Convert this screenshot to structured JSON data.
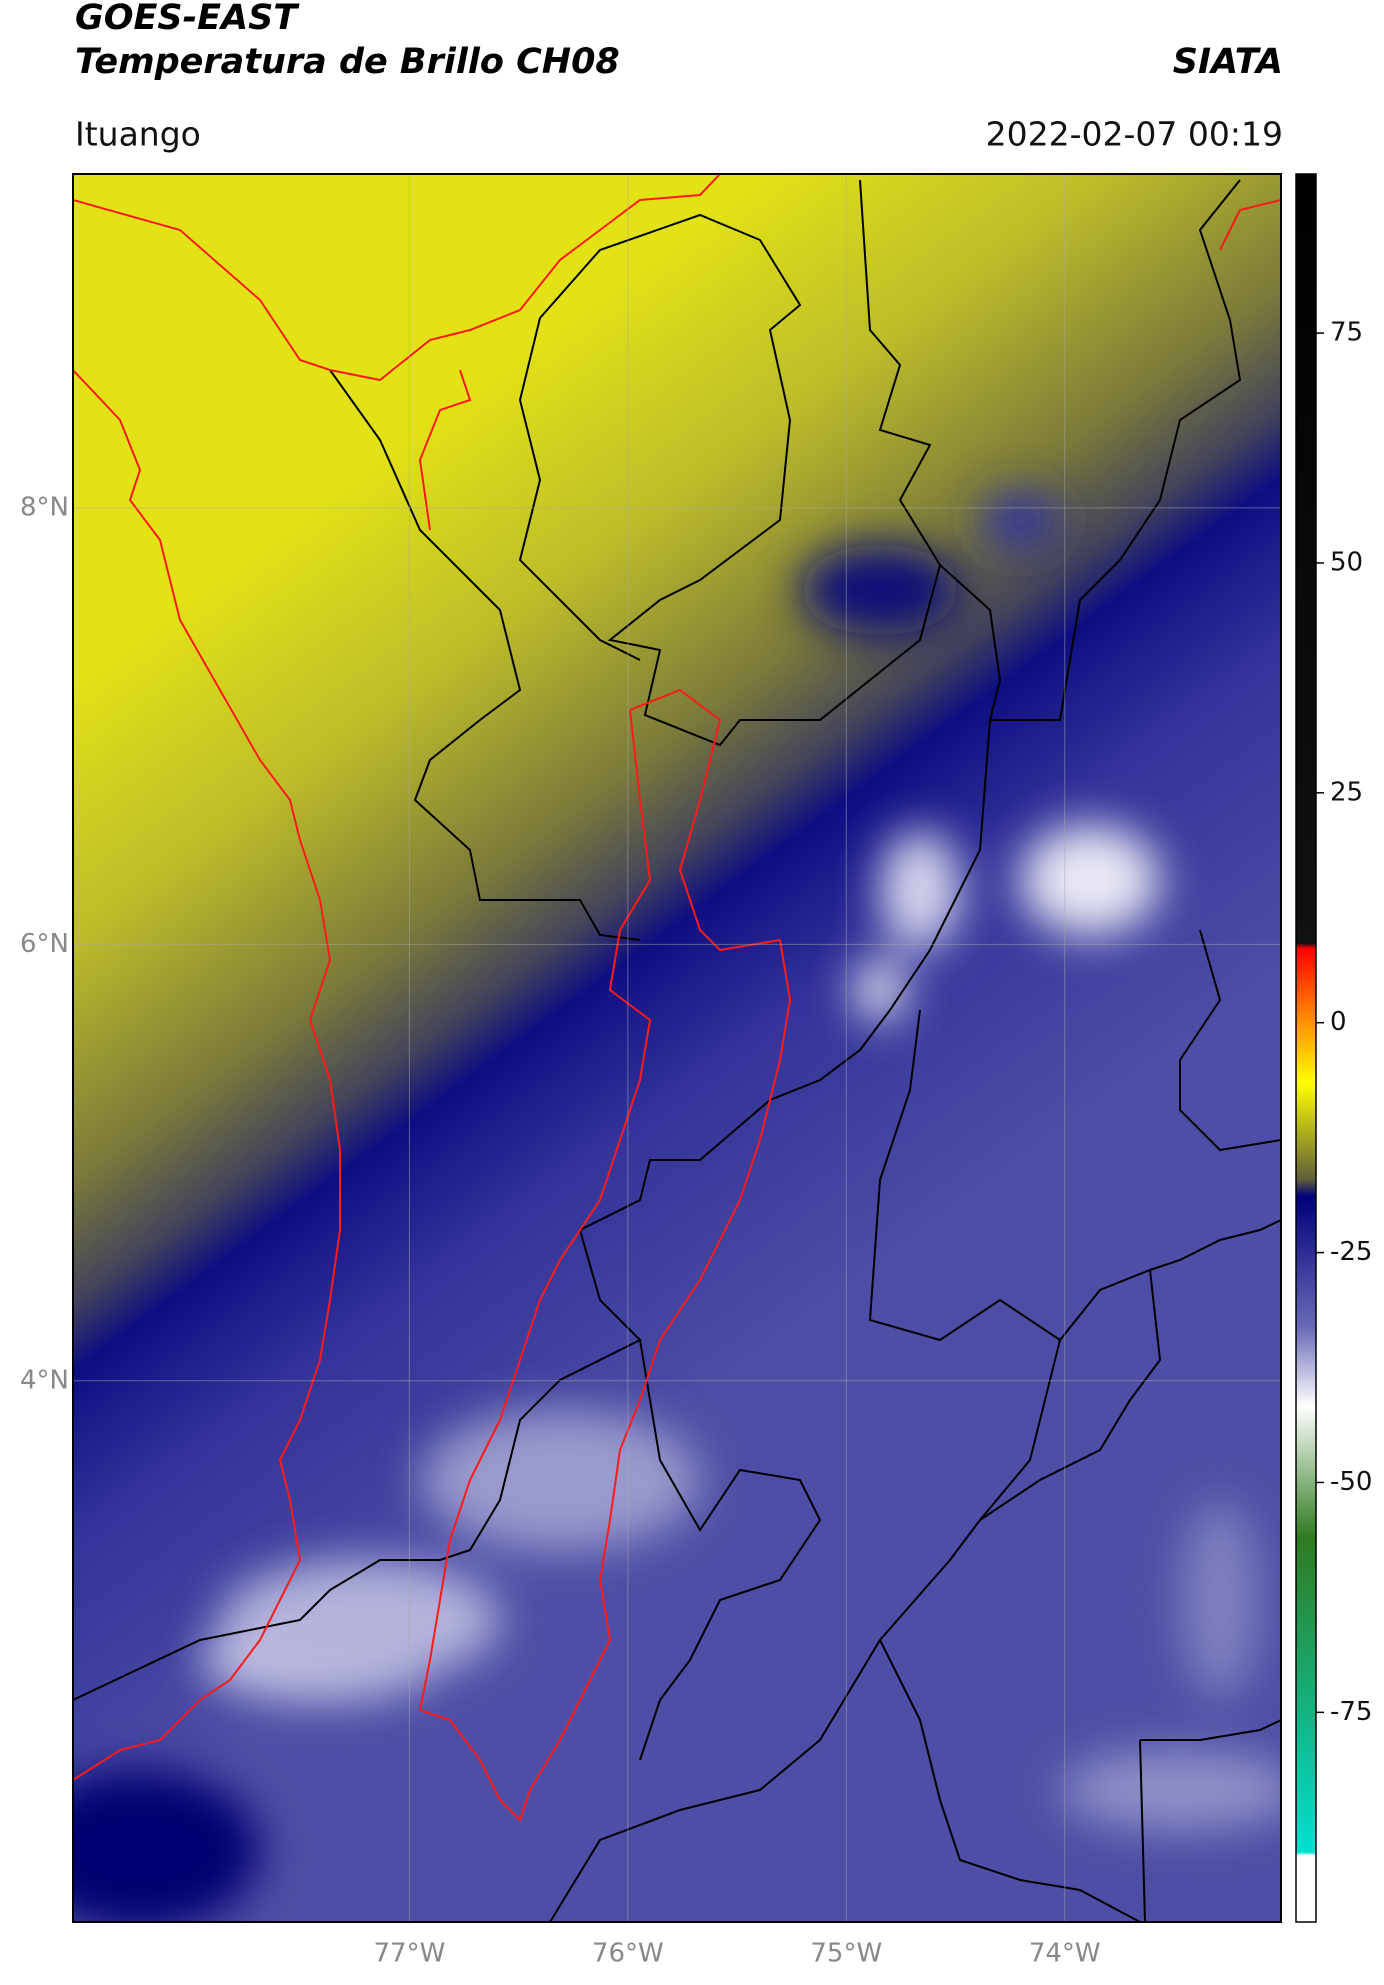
{
  "header": {
    "title": "GOES-EAST",
    "subtitle": "Temperatura de Brillo CH08",
    "source": "SIATA",
    "location": "Ituango",
    "datetime": "2022-02-07 00:19"
  },
  "map": {
    "lonlim": [
      -78.54,
      -73.01
    ],
    "latlim": [
      1.52,
      9.53
    ],
    "lonticks": [
      {
        "value": -77,
        "label": "77°W"
      },
      {
        "value": -76,
        "label": "76°W"
      },
      {
        "value": -75,
        "label": "75°W"
      },
      {
        "value": -74,
        "label": "74°W"
      }
    ],
    "latticks": [
      {
        "value": 8,
        "label": "8°N"
      },
      {
        "value": 6,
        "label": "6°N"
      },
      {
        "value": 4,
        "label": "4°N"
      }
    ],
    "grid": true
  },
  "colorbar": {
    "lim": [
      -97.8,
      92.3
    ],
    "ticks": [
      75,
      50,
      25,
      0,
      -25,
      -50,
      -75
    ]
  }
}
